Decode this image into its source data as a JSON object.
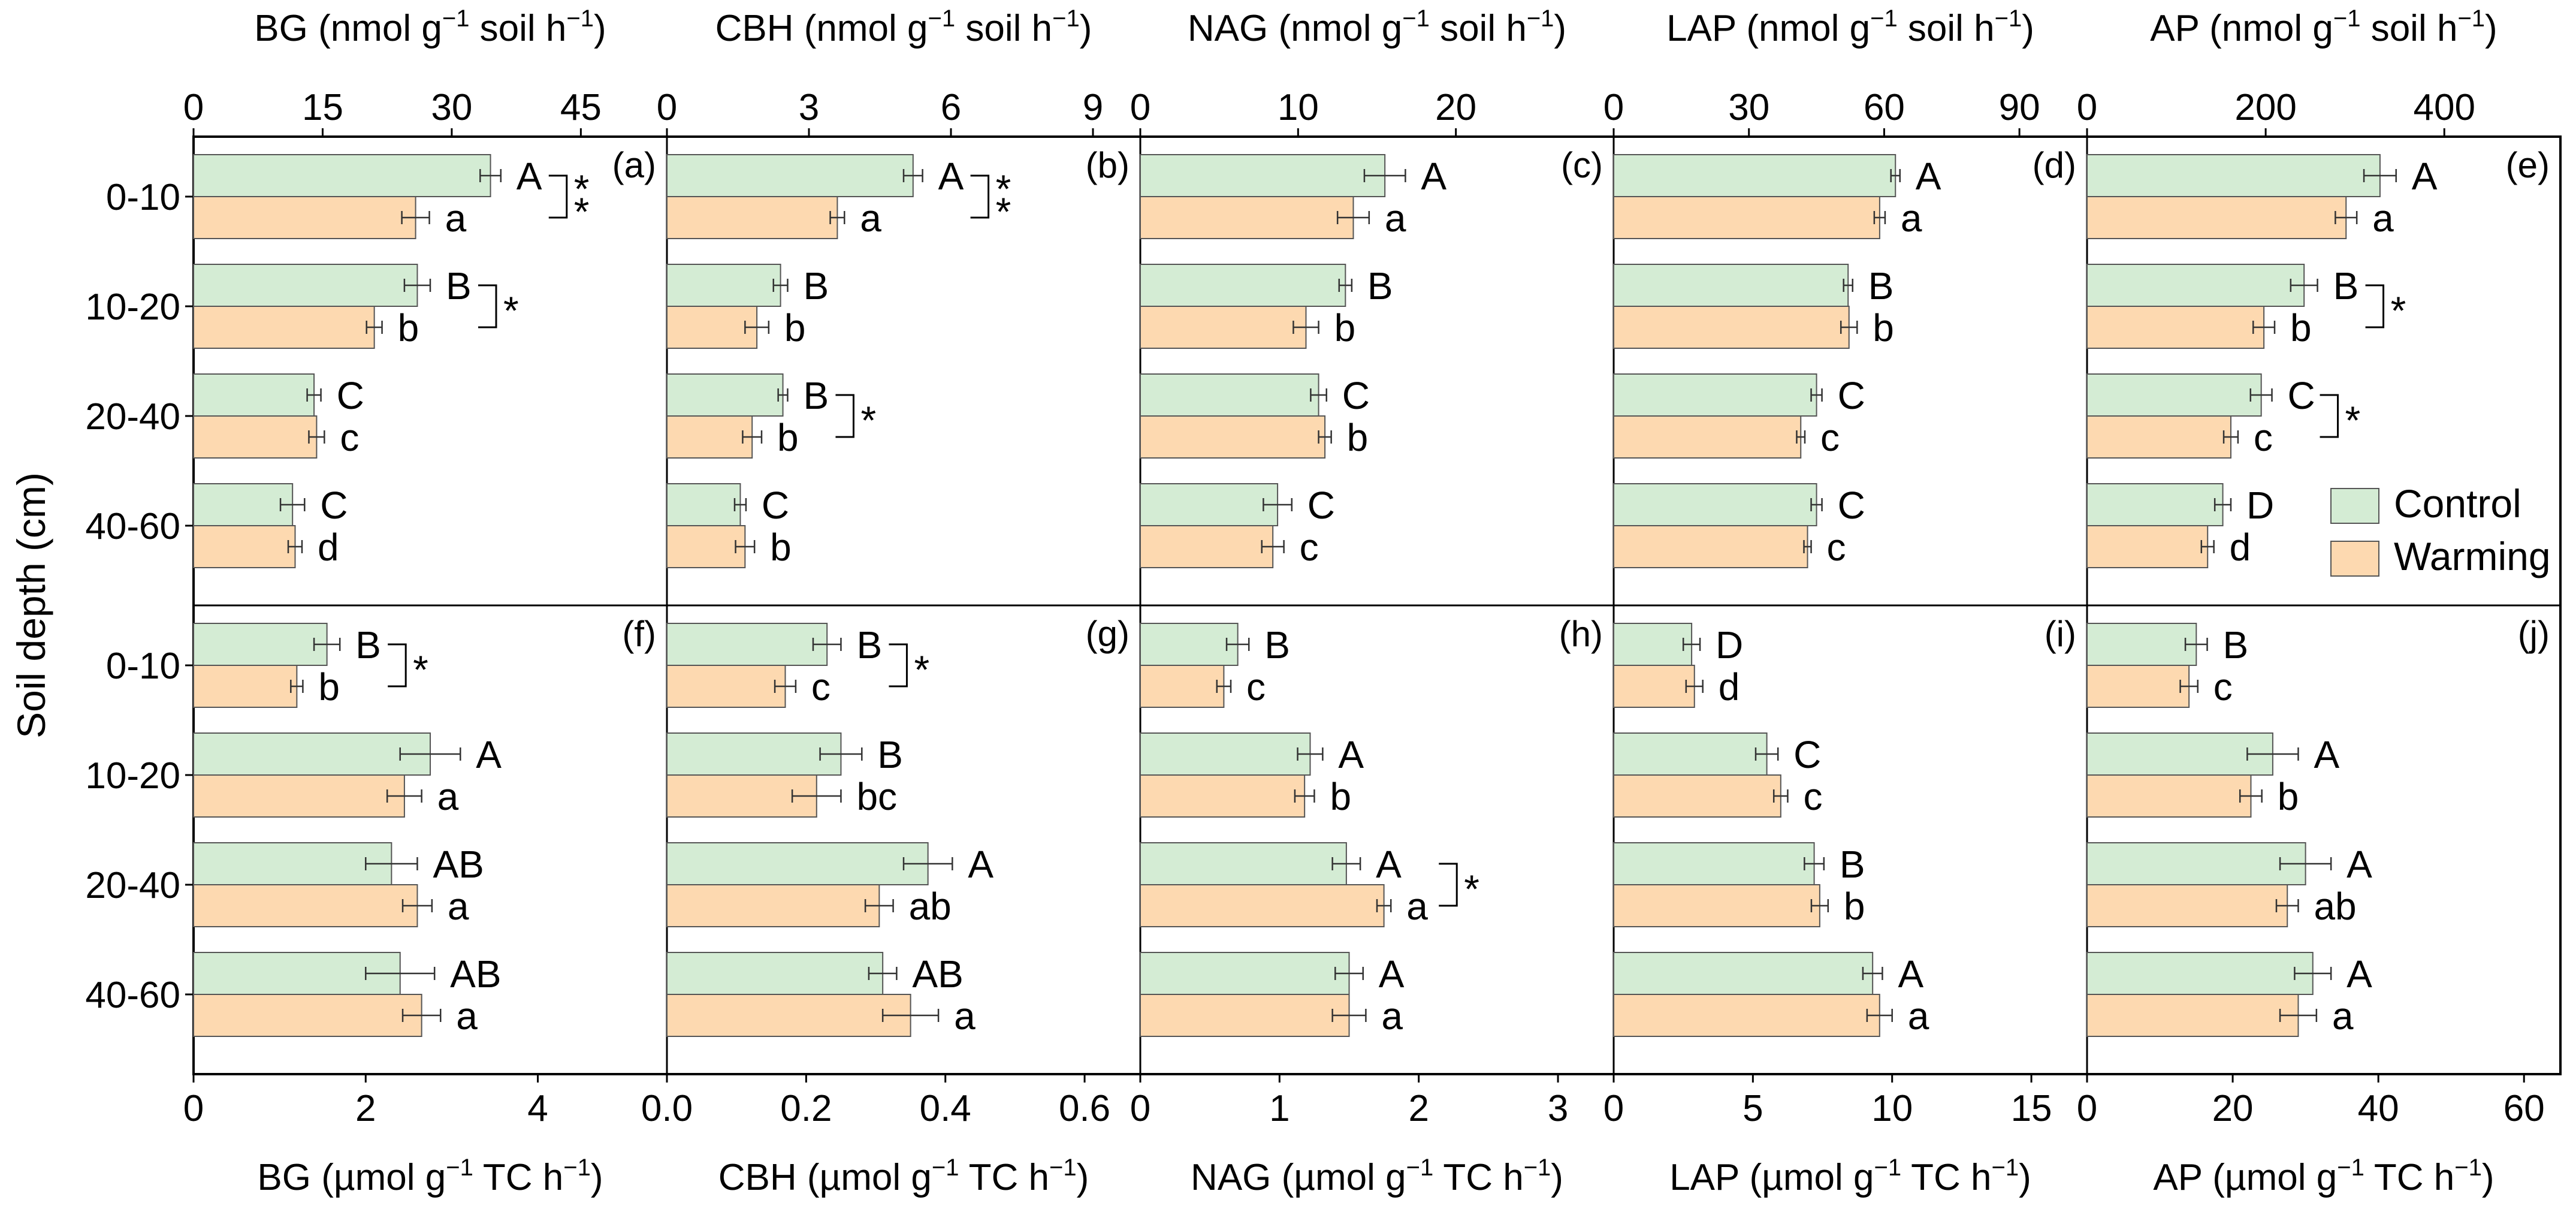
{
  "chart_data": {
    "type": "bar",
    "orientation": "horizontal",
    "ylabel": "Soil depth (cm)",
    "categories": [
      "0-10",
      "10-20",
      "20-40",
      "40-60"
    ],
    "legend": {
      "position": "right, inside panel (e)",
      "entries": [
        {
          "name": "Control",
          "color": "#d4ecd4"
        },
        {
          "name": "Warming",
          "color": "#fdd9b0"
        }
      ]
    },
    "colors": {
      "control": "#d4ecd4",
      "warming": "#fdd9b0",
      "edge": "#555555"
    },
    "top_row_unit": "(nmol g<sup>−1</sup> soil h<sup>−1</sup>)",
    "bottom_row_unit": "(µmol g<sup>−1</sup> TC h<sup>−1</sup>)",
    "panels": [
      {
        "id": "(a)",
        "row": "top",
        "enzyme": "BG",
        "xlim": [
          0,
          55
        ],
        "ticks": [
          0,
          15,
          30,
          45
        ],
        "control": [
          34.5,
          26.0,
          14.0,
          11.5
        ],
        "control_err": [
          1.2,
          1.5,
          0.8,
          1.4
        ],
        "warming": [
          25.8,
          21.0,
          14.3,
          11.8
        ],
        "warming_err": [
          1.6,
          0.9,
          0.9,
          0.8
        ],
        "control_letters": [
          "A",
          "B",
          "C",
          "C"
        ],
        "warming_letters": [
          "a",
          "b",
          "c",
          "d"
        ],
        "significance": [
          "**",
          "*",
          "",
          ""
        ]
      },
      {
        "id": "(b)",
        "row": "top",
        "enzyme": "CBH",
        "xlim": [
          0,
          10
        ],
        "ticks": [
          0,
          3,
          6,
          9
        ],
        "control": [
          5.2,
          2.4,
          2.45,
          1.55
        ],
        "control_err": [
          0.2,
          0.15,
          0.1,
          0.12
        ],
        "warming": [
          3.6,
          1.9,
          1.8,
          1.65
        ],
        "warming_err": [
          0.15,
          0.25,
          0.2,
          0.2
        ],
        "control_letters": [
          "A",
          "B",
          "B",
          "C"
        ],
        "warming_letters": [
          "a",
          "b",
          "b",
          "b"
        ],
        "significance": [
          "**",
          "",
          "*",
          ""
        ]
      },
      {
        "id": "(c)",
        "row": "top",
        "enzyme": "NAG",
        "xlim": [
          0,
          30
        ],
        "ticks": [
          0,
          10,
          20
        ],
        "control": [
          15.5,
          13.0,
          11.3,
          8.7
        ],
        "control_err": [
          1.3,
          0.4,
          0.5,
          0.9
        ],
        "warming": [
          13.5,
          10.5,
          11.7,
          8.4
        ],
        "warming_err": [
          1.0,
          0.8,
          0.4,
          0.7
        ],
        "control_letters": [
          "A",
          "B",
          "C",
          "C"
        ],
        "warming_letters": [
          "a",
          "b",
          "b",
          "c"
        ],
        "significance": [
          "",
          "",
          "",
          ""
        ]
      },
      {
        "id": "(d)",
        "row": "top",
        "enzyme": "LAP",
        "xlim": [
          0,
          105
        ],
        "ticks": [
          0,
          30,
          60,
          90
        ],
        "control": [
          62.5,
          52.0,
          45.0,
          45.0
        ],
        "control_err": [
          1.0,
          1.0,
          1.2,
          1.2
        ],
        "warming": [
          59.0,
          52.2,
          41.5,
          43.0
        ],
        "warming_err": [
          1.2,
          1.8,
          0.9,
          0.8
        ],
        "control_letters": [
          "A",
          "B",
          "C",
          "C"
        ],
        "warming_letters": [
          "a",
          "b",
          "c",
          "c"
        ],
        "significance": [
          "",
          "",
          "",
          ""
        ]
      },
      {
        "id": "(e)",
        "row": "top",
        "enzyme": "AP",
        "xlim": [
          0,
          530
        ],
        "ticks": [
          0,
          200,
          400
        ],
        "control": [
          328,
          243,
          195,
          152
        ],
        "control_err": [
          18,
          15,
          12,
          9
        ],
        "warming": [
          290,
          198,
          161,
          135
        ],
        "warming_err": [
          12,
          12,
          8,
          7
        ],
        "control_letters": [
          "A",
          "B",
          "C",
          "D"
        ],
        "warming_letters": [
          "a",
          "b",
          "c",
          "d"
        ],
        "significance": [
          "",
          "*",
          "*",
          ""
        ]
      },
      {
        "id": "(f)",
        "row": "bottom",
        "enzyme": "BG",
        "xlim": [
          0,
          5.5
        ],
        "ticks": [
          0,
          2,
          4
        ],
        "control": [
          1.55,
          2.75,
          2.3,
          2.4
        ],
        "control_err": [
          0.15,
          0.35,
          0.3,
          0.4
        ],
        "warming": [
          1.2,
          2.45,
          2.6,
          2.65
        ],
        "warming_err": [
          0.07,
          0.2,
          0.17,
          0.22
        ],
        "control_letters": [
          "B",
          "A",
          "AB",
          "AB"
        ],
        "warming_letters": [
          "b",
          "a",
          "a",
          "a"
        ],
        "significance": [
          "*",
          "",
          "",
          ""
        ]
      },
      {
        "id": "(g)",
        "row": "bottom",
        "enzyme": "CBH",
        "xlim": [
          0,
          0.68
        ],
        "ticks": [
          0.0,
          0.2,
          0.4,
          0.6
        ],
        "control": [
          0.23,
          0.25,
          0.375,
          0.31
        ],
        "control_err": [
          0.02,
          0.03,
          0.035,
          0.02
        ],
        "warming": [
          0.17,
          0.215,
          0.305,
          0.35
        ],
        "warming_err": [
          0.015,
          0.035,
          0.02,
          0.04
        ],
        "control_letters": [
          "B",
          "B",
          "A",
          "AB"
        ],
        "warming_letters": [
          "c",
          "bc",
          "ab",
          "a"
        ],
        "significance": [
          "*",
          "",
          "",
          ""
        ]
      },
      {
        "id": "(h)",
        "row": "bottom",
        "enzyme": "NAG",
        "xlim": [
          0,
          3.4
        ],
        "ticks": [
          0,
          1,
          2,
          3
        ],
        "control": [
          0.7,
          1.22,
          1.48,
          1.5
        ],
        "control_err": [
          0.08,
          0.09,
          0.1,
          0.1
        ],
        "warming": [
          0.6,
          1.18,
          1.75,
          1.5
        ],
        "warming_err": [
          0.05,
          0.07,
          0.05,
          0.12
        ],
        "control_letters": [
          "B",
          "A",
          "A",
          "A"
        ],
        "warming_letters": [
          "c",
          "b",
          "a",
          "a"
        ],
        "significance": [
          "",
          "",
          "*",
          ""
        ]
      },
      {
        "id": "(i)",
        "row": "bottom",
        "enzyme": "LAP",
        "xlim": [
          0,
          17
        ],
        "ticks": [
          0,
          5,
          10,
          15
        ],
        "control": [
          2.8,
          5.5,
          7.2,
          9.3
        ],
        "control_err": [
          0.3,
          0.4,
          0.35,
          0.35
        ],
        "warming": [
          2.9,
          6.0,
          7.4,
          9.55
        ],
        "warming_err": [
          0.3,
          0.25,
          0.3,
          0.45
        ],
        "control_letters": [
          "D",
          "C",
          "B",
          "A"
        ],
        "warming_letters": [
          "d",
          "c",
          "b",
          "a"
        ],
        "significance": [
          "",
          "",
          "",
          ""
        ]
      },
      {
        "id": "(j)",
        "row": "bottom",
        "enzyme": "AP",
        "xlim": [
          0,
          65
        ],
        "ticks": [
          0,
          20,
          40,
          60
        ],
        "control": [
          15,
          25.5,
          30,
          31
        ],
        "control_err": [
          1.5,
          3.5,
          3.5,
          2.5
        ],
        "warming": [
          14,
          22.5,
          27.5,
          29
        ],
        "warming_err": [
          1.2,
          1.5,
          1.5,
          2.5
        ],
        "control_letters": [
          "B",
          "A",
          "A",
          "A"
        ],
        "warming_letters": [
          "c",
          "b",
          "ab",
          "a"
        ],
        "significance": [
          "",
          "",
          "",
          ""
        ]
      }
    ]
  }
}
